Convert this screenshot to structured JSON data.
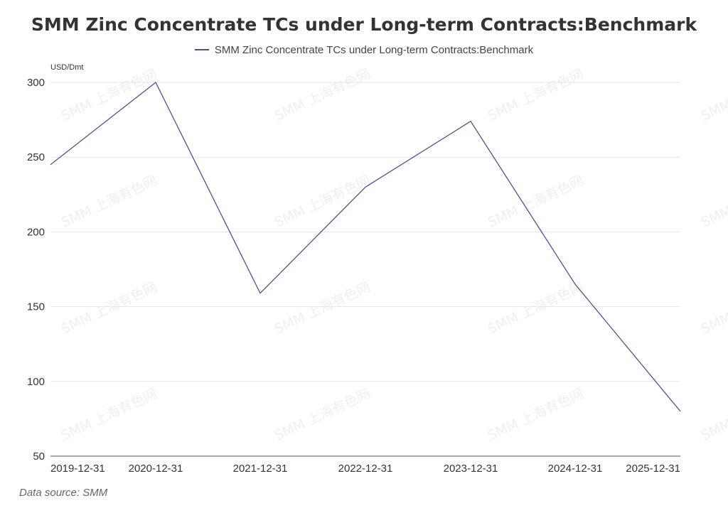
{
  "chart_data": {
    "type": "line",
    "title": "SMM Zinc Concentrate TCs under Long-term Contracts:Benchmark",
    "unit_label": "USD/Dmt",
    "x": [
      "2019-12-31",
      "2020-12-31",
      "2021-12-31",
      "2022-12-31",
      "2023-12-31",
      "2024-12-31",
      "2025-12-31"
    ],
    "series": [
      {
        "name": "SMM Zinc Concentrate TCs under Long-term Contracts:Benchmark",
        "values": [
          245,
          300,
          159,
          230,
          274,
          165,
          80
        ],
        "color": "#4a5494"
      }
    ],
    "yticks": [
      50,
      100,
      150,
      200,
      250,
      300
    ],
    "ylim": [
      50,
      300
    ],
    "grid": true,
    "legend_position": "top-center"
  },
  "source": "Data source:  SMM",
  "watermark": "SMM 上海有色网"
}
